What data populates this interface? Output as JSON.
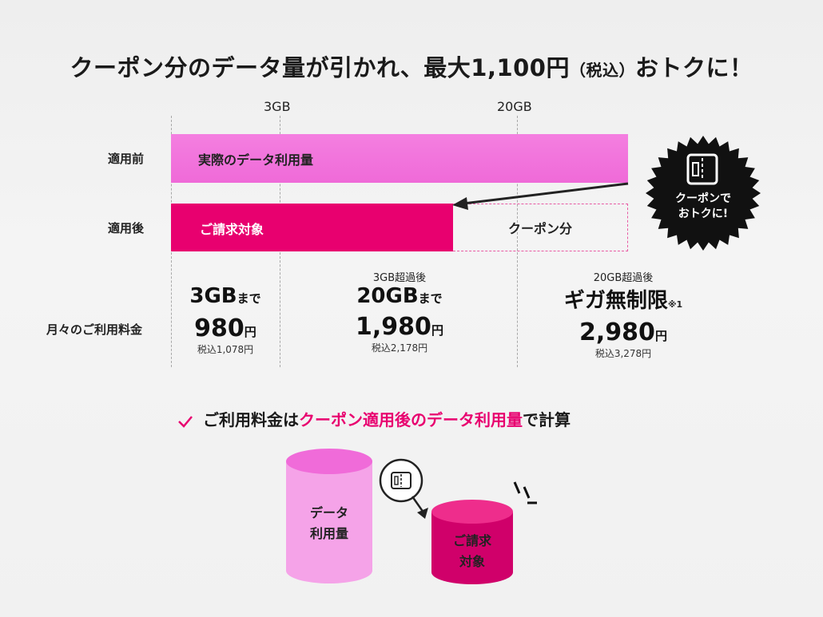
{
  "title": {
    "main_before": "クーポン分のデータ量が引かれ、最大1,100円",
    "tax_note": "（税込）",
    "main_after": "おトクに！"
  },
  "axis": {
    "tick_3gb": "3GB",
    "tick_20gb": "20GB"
  },
  "rows": {
    "before_label": "適用前",
    "after_label": "適用後",
    "fee_label": "月々のご利用料金"
  },
  "bars": {
    "before_text": "実際のデータ利用量",
    "after_text": "ご請求対象",
    "coupon_text": "クーポン分"
  },
  "badge": {
    "line1": "クーポンで",
    "line2": "おトクに!"
  },
  "tiers": [
    {
      "caption": "",
      "main": "3GB",
      "main_suffix": "まで",
      "note": "",
      "price": "980",
      "yen": "円",
      "tax": "税込1,078円"
    },
    {
      "caption": "3GB超過後",
      "main": "20GB",
      "main_suffix": "まで",
      "note": "",
      "price": "1,980",
      "yen": "円",
      "tax": "税込2,178円"
    },
    {
      "caption": "20GB超過後",
      "main": "ギガ無制限",
      "main_suffix": "",
      "note": "※1",
      "price": "2,980",
      "yen": "円",
      "tax": "税込3,278円"
    }
  ],
  "summary": {
    "prefix": "ご利用料金は",
    "highlight": "クーポン適用後のデータ利用量",
    "suffix": "で計算"
  },
  "cylinders": {
    "big_line1": "データ",
    "big_line2": "利用量",
    "small_line1": "ご請求",
    "small_line2": "対象"
  },
  "colors": {
    "magenta": "#e8006f",
    "pink": "#f06bd9",
    "light_pink": "#f7a8ec",
    "badge_black": "#111111"
  }
}
